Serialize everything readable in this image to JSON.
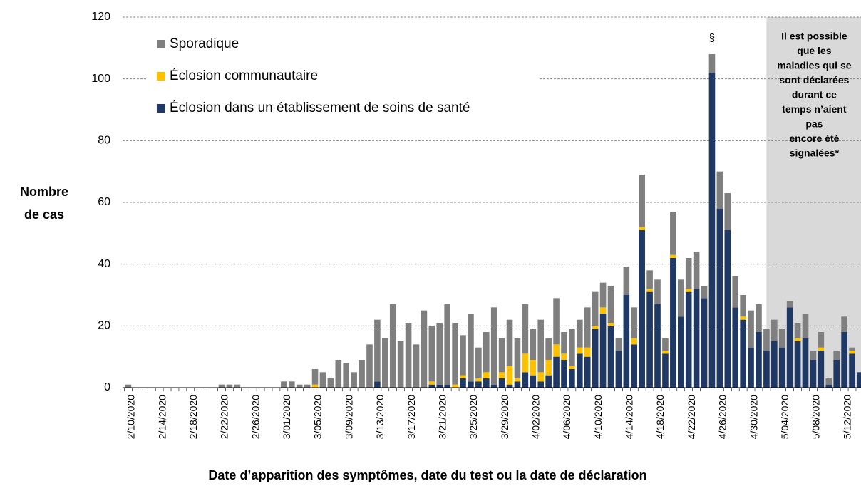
{
  "chart_data": {
    "type": "stacked_bar",
    "ylabel_lines": [
      "Nombre",
      "de cas"
    ],
    "xlabel": "Date d’apparition des symptômes, date du test ou la date de déclaration",
    "peak_note": "§",
    "note_lines": [
      "Il est possible",
      "que les",
      "maladies qui se",
      "sont déclarées",
      "durant ce",
      "temps n’aient",
      "pas",
      "encore été",
      "signalées*"
    ],
    "ylim": [
      0,
      120
    ],
    "yticks": [
      0,
      20,
      40,
      60,
      80,
      100,
      120
    ],
    "grid": true,
    "categories": [
      "2/10/2020",
      null,
      null,
      null,
      "2/14/2020",
      null,
      null,
      null,
      "2/18/2020",
      null,
      null,
      null,
      "2/22/2020",
      null,
      null,
      null,
      "2/26/2020",
      null,
      null,
      null,
      "3/01/2020",
      null,
      null,
      null,
      "3/05/2020",
      null,
      null,
      null,
      "3/09/2020",
      null,
      null,
      null,
      "3/13/2020",
      null,
      null,
      null,
      "3/17/2020",
      null,
      null,
      null,
      "3/21/2020",
      null,
      null,
      null,
      "3/25/2020",
      null,
      null,
      null,
      "3/29/2020",
      null,
      null,
      null,
      "4/02/2020",
      null,
      null,
      null,
      "4/06/2020",
      null,
      null,
      null,
      "4/10/2020",
      null,
      null,
      null,
      "4/14/2020",
      null,
      null,
      null,
      "4/18/2020",
      null,
      null,
      null,
      "4/22/2020",
      null,
      null,
      null,
      "4/26/2020",
      null,
      null,
      null,
      "4/30/2020",
      null,
      null,
      null,
      "5/04/2020",
      null,
      null,
      null,
      "5/08/2020",
      null,
      null,
      null,
      "5/12/2020",
      null,
      null
    ],
    "series": [
      {
        "name": "Sporadique",
        "color": "#7f7f7f",
        "values": [
          1,
          0,
          0,
          0,
          0,
          0,
          0,
          0,
          0,
          0,
          0,
          0,
          1,
          1,
          1,
          0,
          0,
          0,
          0,
          0,
          2,
          2,
          1,
          1,
          5,
          5,
          3,
          9,
          8,
          5,
          9,
          14,
          20,
          16,
          27,
          15,
          21,
          14,
          25,
          18,
          20,
          26,
          20,
          13,
          22,
          10,
          13,
          25,
          11,
          15,
          13,
          16,
          10,
          17,
          7,
          15,
          7,
          12,
          9,
          13,
          11,
          8,
          12,
          4,
          9,
          10,
          17,
          6,
          8,
          4,
          14,
          12,
          10,
          12,
          4,
          6,
          12,
          12,
          10,
          7,
          12,
          9,
          7,
          7,
          6,
          2,
          5,
          8,
          3,
          5,
          2,
          3,
          5,
          1,
          0
        ]
      },
      {
        "name": "Éclosion communautaire",
        "color": "#ffc000",
        "values": [
          0,
          0,
          0,
          0,
          0,
          0,
          0,
          0,
          0,
          0,
          0,
          0,
          0,
          0,
          0,
          0,
          0,
          0,
          0,
          0,
          0,
          0,
          0,
          0,
          1,
          0,
          0,
          0,
          0,
          0,
          0,
          0,
          0,
          0,
          0,
          0,
          0,
          0,
          0,
          1,
          0,
          0,
          1,
          1,
          0,
          1,
          2,
          0,
          2,
          6,
          1,
          6,
          5,
          3,
          5,
          4,
          2,
          1,
          2,
          3,
          1,
          2,
          1,
          0,
          0,
          2,
          1,
          1,
          0,
          1,
          1,
          0,
          1,
          0,
          0,
          0,
          0,
          0,
          0,
          1,
          0,
          0,
          0,
          0,
          0,
          0,
          1,
          0,
          0,
          1,
          0,
          0,
          0,
          1,
          0
        ]
      },
      {
        "name": "Éclosion dans un établissement de soins de santé",
        "color": "#1f3864",
        "values": [
          0,
          0,
          0,
          0,
          0,
          0,
          0,
          0,
          0,
          0,
          0,
          0,
          0,
          0,
          0,
          0,
          0,
          0,
          0,
          0,
          0,
          0,
          0,
          0,
          0,
          0,
          0,
          0,
          0,
          0,
          0,
          0,
          2,
          0,
          0,
          0,
          0,
          0,
          0,
          1,
          1,
          1,
          0,
          3,
          2,
          2,
          3,
          1,
          3,
          1,
          2,
          5,
          4,
          2,
          4,
          10,
          9,
          6,
          11,
          10,
          19,
          24,
          20,
          12,
          30,
          14,
          51,
          31,
          27,
          11,
          42,
          23,
          31,
          32,
          29,
          102,
          58,
          51,
          26,
          22,
          13,
          18,
          12,
          15,
          13,
          26,
          15,
          16,
          9,
          12,
          1,
          9,
          18,
          11,
          5
        ]
      }
    ]
  }
}
